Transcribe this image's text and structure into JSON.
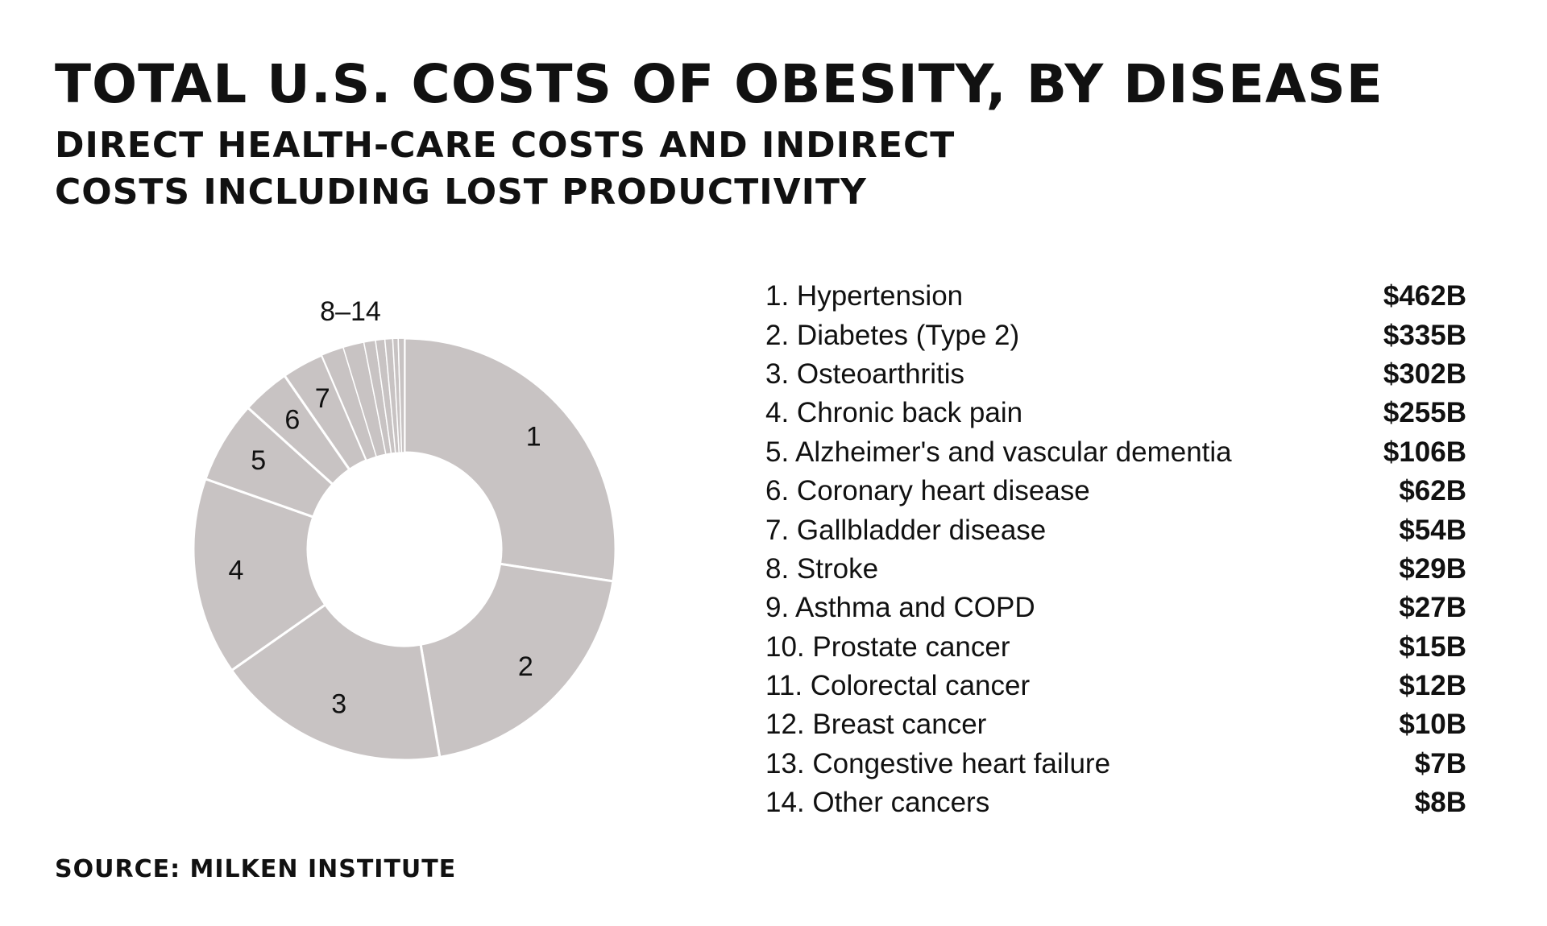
{
  "chart_data": {
    "type": "pie",
    "title": "TOTAL U.S. COSTS OF OBESITY, BY DISEASE",
    "subtitle": "DIRECT HEALTH-CARE COSTS AND INDIRECT COSTS INCLUDING LOST PRODUCTIVITY",
    "source": "SOURCE: MILKEN INSTITUTE",
    "units": "billions of US dollars",
    "donut": true,
    "slice_color": "#c8c3c3",
    "separator_color": "#ffffff",
    "group_label": "8–14",
    "slices": [
      {
        "rank": "1",
        "name": "Hypertension",
        "value": 462,
        "value_label": "$462B",
        "label": "1. Hypertension",
        "chart_label": "1"
      },
      {
        "rank": "2",
        "name": "Diabetes (Type 2)",
        "value": 335,
        "value_label": "$335B",
        "label": "2. Diabetes (Type 2)",
        "chart_label": "2"
      },
      {
        "rank": "3",
        "name": "Osteoarthritis",
        "value": 302,
        "value_label": "$302B",
        "label": "3. Osteoarthritis",
        "chart_label": "3"
      },
      {
        "rank": "4",
        "name": "Chronic back pain",
        "value": 255,
        "value_label": "$255B",
        "label": "4. Chronic back pain",
        "chart_label": "4"
      },
      {
        "rank": "5",
        "name": "Alzheimer's and vascular dementia",
        "value": 106,
        "value_label": "$106B",
        "label": "5. Alzheimer's and vascular dementia",
        "chart_label": "5"
      },
      {
        "rank": "6",
        "name": "Coronary heart disease",
        "value": 62,
        "value_label": "$62B",
        "label": "6. Coronary heart disease",
        "chart_label": "6"
      },
      {
        "rank": "7",
        "name": "Gallbladder disease",
        "value": 54,
        "value_label": "$54B",
        "label": "7. Gallbladder disease",
        "chart_label": "7"
      },
      {
        "rank": "8",
        "name": "Stroke",
        "value": 29,
        "value_label": "$29B",
        "label": "8. Stroke",
        "chart_label": ""
      },
      {
        "rank": "9",
        "name": "Asthma and COPD",
        "value": 27,
        "value_label": "$27B",
        "label": "9. Asthma and COPD",
        "chart_label": ""
      },
      {
        "rank": "10",
        "name": "Prostate cancer",
        "value": 15,
        "value_label": "$15B",
        "label": "10. Prostate cancer",
        "chart_label": ""
      },
      {
        "rank": "11",
        "name": "Colorectal cancer",
        "value": 12,
        "value_label": "$12B",
        "label": "11. Colorectal cancer",
        "chart_label": ""
      },
      {
        "rank": "12",
        "name": "Breast cancer",
        "value": 10,
        "value_label": "$10B",
        "label": "12. Breast cancer",
        "chart_label": ""
      },
      {
        "rank": "13",
        "name": "Congestive heart failure",
        "value": 7,
        "value_label": "$7B",
        "label": "13. Congestive heart failure",
        "chart_label": ""
      },
      {
        "rank": "14",
        "name": "Other cancers",
        "value": 8,
        "value_label": "$8B",
        "label": "14. Other cancers",
        "chart_label": ""
      }
    ]
  }
}
